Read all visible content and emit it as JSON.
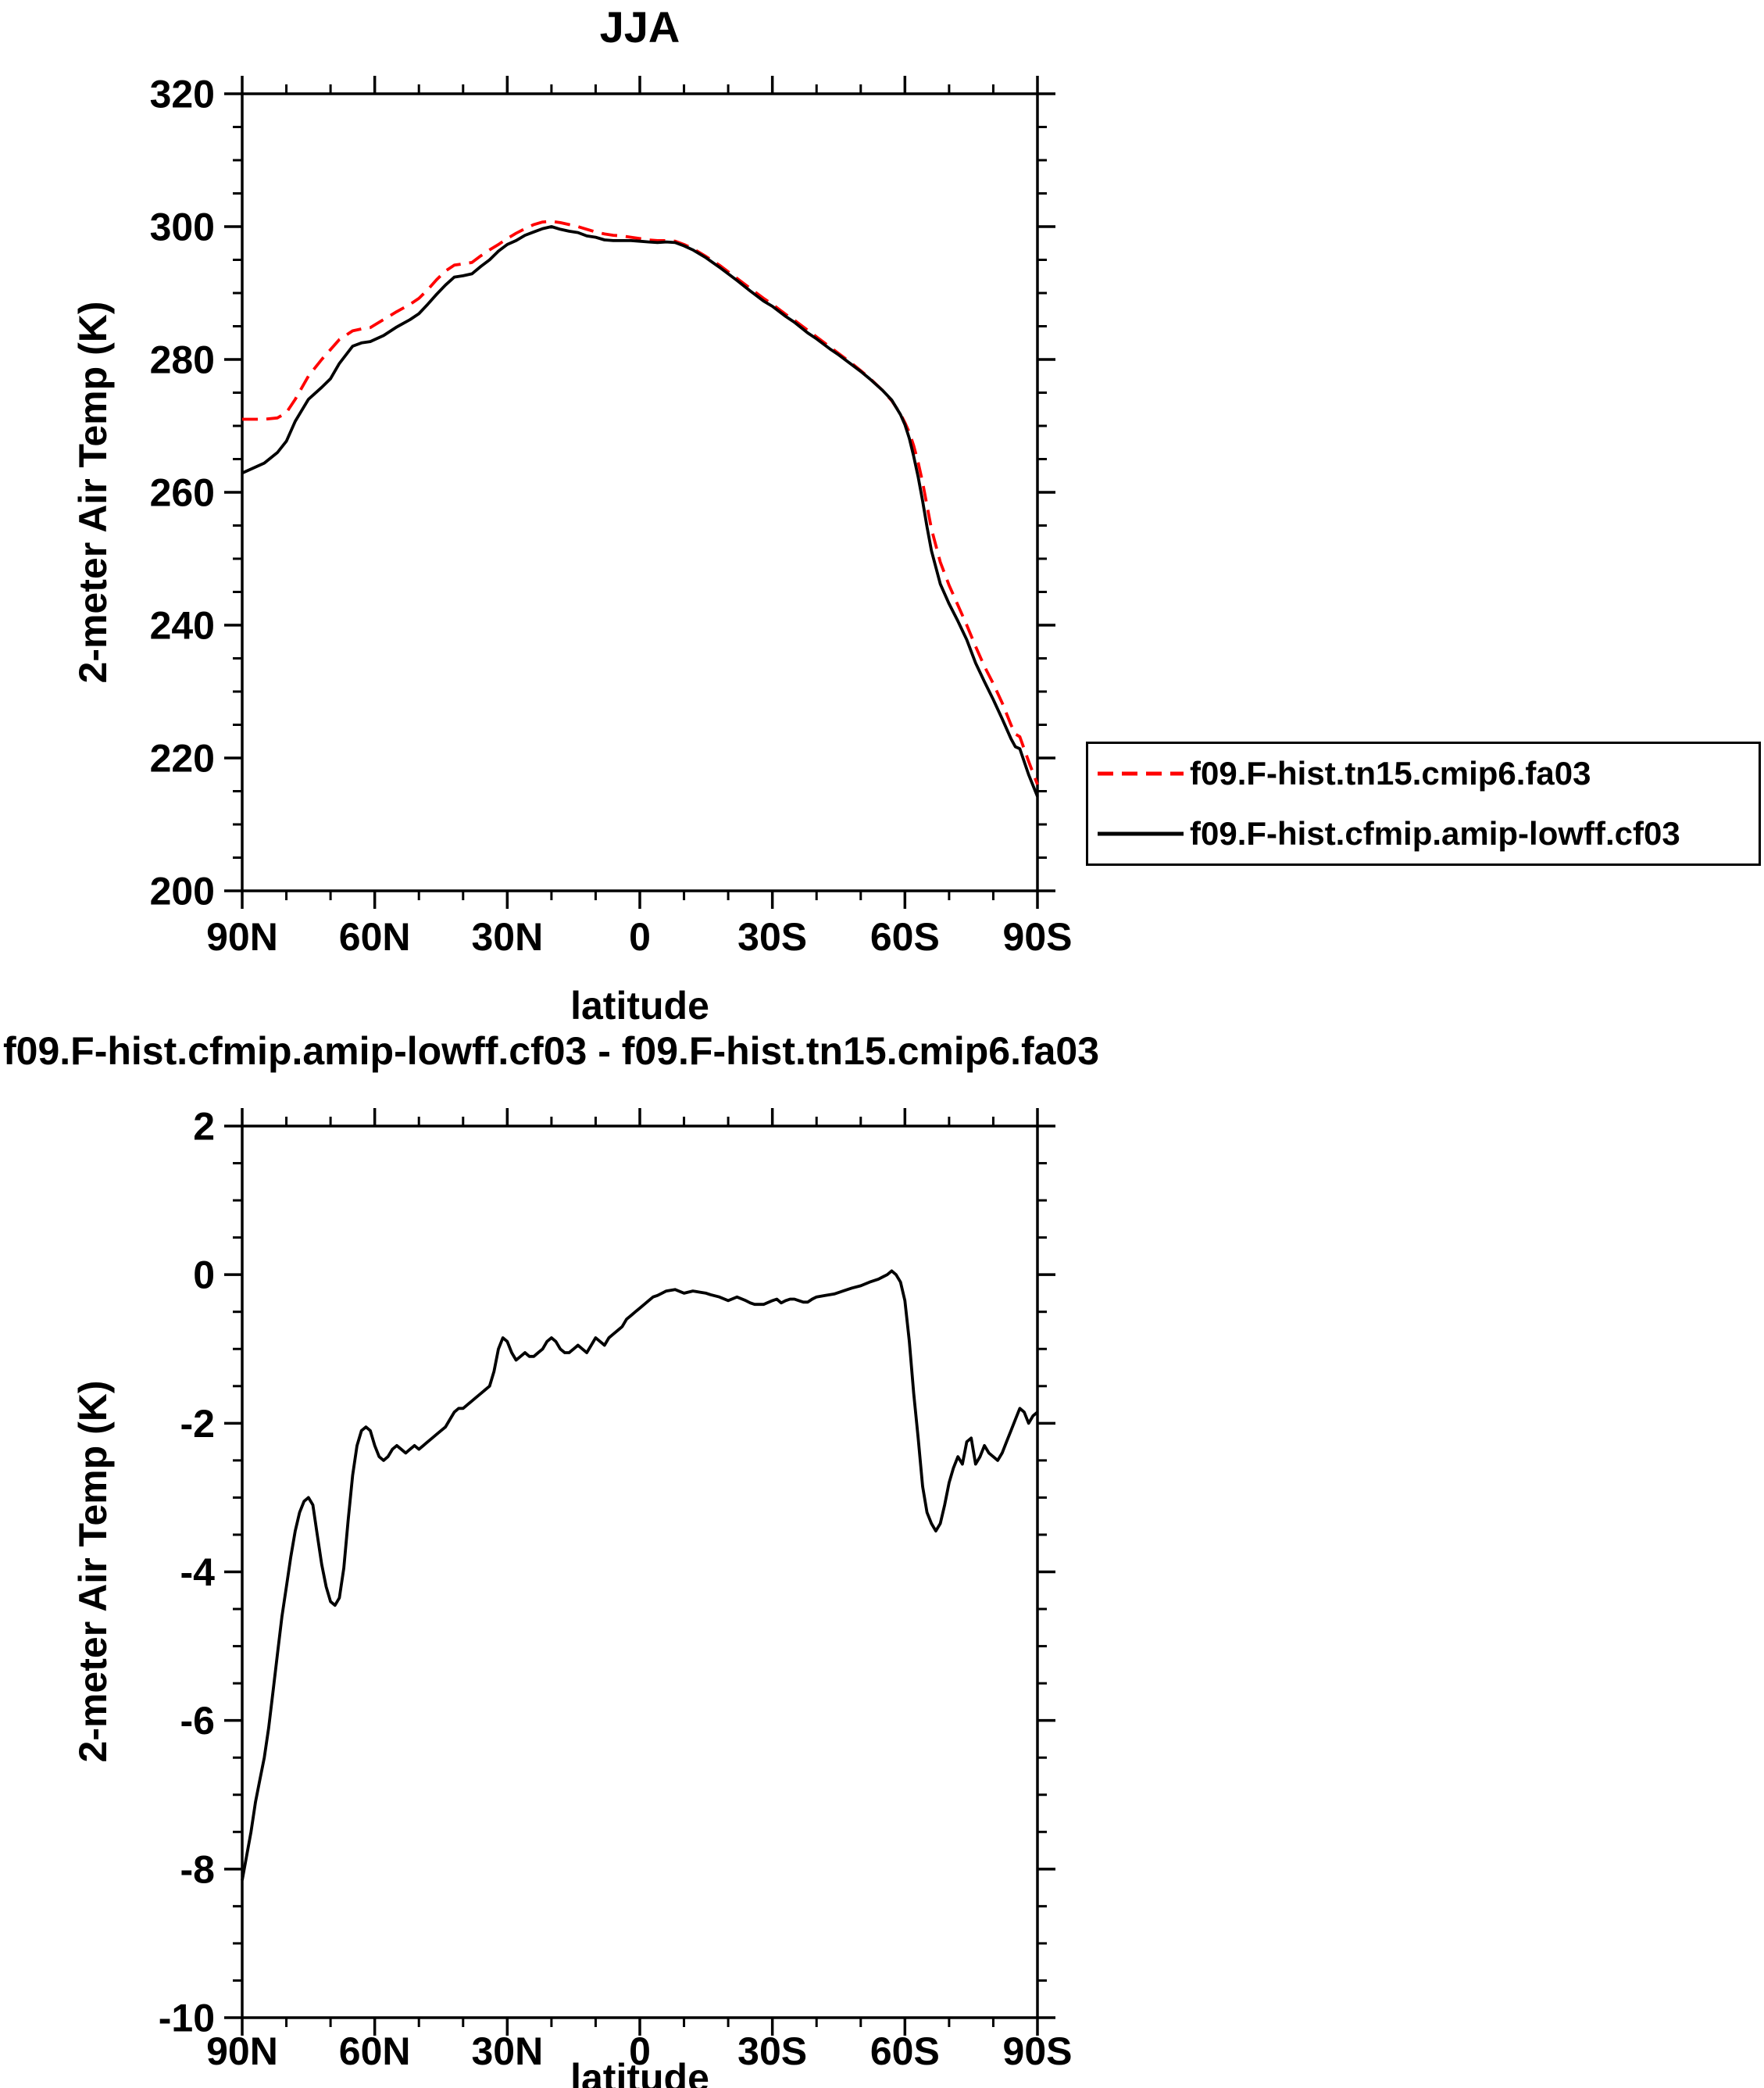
{
  "page": {
    "background": "#ffffff"
  },
  "colors": {
    "series_red": "#ff0000",
    "series_black": "#000000",
    "axis": "#000000"
  },
  "chart_data": [
    {
      "type": "line",
      "title": "JJA",
      "xlabel": "latitude",
      "ylabel": "2-meter Air Temp (K)",
      "xlim": [
        90,
        -90
      ],
      "ylim": [
        200,
        320
      ],
      "grid": false,
      "legend_position": "outside-bottom-right",
      "xticks": {
        "values": [
          90,
          60,
          30,
          0,
          -30,
          -60,
          -90
        ],
        "labels": [
          "90N",
          "60N",
          "30N",
          "0",
          "30S",
          "60S",
          "90S"
        ],
        "minor_step": 10
      },
      "yticks": {
        "values": [
          200,
          220,
          240,
          260,
          280,
          300,
          320
        ],
        "labels": [
          "200",
          "220",
          "240",
          "260",
          "280",
          "300",
          "320"
        ],
        "minor_step": 5
      },
      "x": [
        90,
        85,
        82,
        80,
        78,
        75,
        72,
        70,
        68,
        65,
        63,
        61,
        60,
        58,
        55,
        52,
        50,
        48,
        46,
        44,
        42,
        40,
        38,
        36,
        34,
        32,
        30,
        28,
        26,
        24,
        22,
        20,
        18,
        16,
        14,
        12,
        10,
        8,
        6,
        4,
        2,
        0,
        -2,
        -4,
        -6,
        -8,
        -10,
        -12,
        -15,
        -18,
        -20,
        -22,
        -25,
        -28,
        -30,
        -33,
        -35,
        -38,
        -40,
        -43,
        -45,
        -48,
        -50,
        -52,
        -55,
        -57,
        -59,
        -60,
        -61,
        -62,
        -63,
        -64,
        -65,
        -66,
        -68,
        -70,
        -72,
        -74,
        -76,
        -78,
        -80,
        -82,
        -84,
        -85,
        -86,
        -88,
        -90
      ],
      "series": [
        {
          "name": "f09.F-hist.tn15.cmip6.fa03",
          "color": "#ff0000",
          "style": "dashed",
          "y": [
            271.0,
            271.0,
            271.2,
            272.0,
            274.0,
            277.5,
            280.0,
            281.5,
            283.0,
            284.3,
            284.6,
            284.8,
            285.2,
            286.0,
            287.2,
            288.3,
            289.2,
            290.5,
            292.0,
            293.3,
            294.2,
            294.4,
            294.6,
            295.6,
            296.5,
            297.3,
            298.2,
            299.0,
            299.7,
            300.3,
            300.7,
            300.8,
            300.6,
            300.3,
            300.0,
            299.6,
            299.2,
            298.9,
            298.7,
            298.6,
            298.4,
            298.2,
            298.0,
            297.9,
            297.9,
            297.8,
            297.3,
            296.7,
            295.5,
            294.2,
            293.2,
            292.2,
            290.7,
            289.2,
            288.3,
            286.8,
            285.9,
            284.4,
            283.4,
            281.9,
            280.9,
            279.4,
            278.3,
            277.2,
            275.3,
            273.8,
            271.8,
            270.5,
            269.0,
            267.0,
            264.5,
            261.5,
            258.0,
            254.5,
            249.5,
            246.0,
            243.0,
            240.0,
            236.8,
            233.8,
            231.2,
            228.3,
            225.0,
            223.6,
            223.2,
            219.5,
            216.0
          ]
        },
        {
          "name": "f09.F-hist.cfmip.amip-lowff.cf03",
          "color": "#000000",
          "style": "solid",
          "y": [
            262.9,
            264.4,
            266.0,
            267.7,
            270.7,
            274.0,
            275.8,
            277.1,
            279.4,
            282.0,
            282.5,
            282.7,
            283.0,
            283.6,
            284.9,
            286.0,
            286.9,
            288.3,
            289.8,
            291.2,
            292.4,
            292.6,
            292.9,
            294.0,
            295.0,
            296.3,
            297.3,
            297.9,
            298.7,
            299.2,
            299.7,
            300.0,
            299.6,
            299.3,
            299.1,
            298.6,
            298.4,
            298.0,
            297.9,
            297.9,
            297.9,
            297.8,
            297.7,
            297.6,
            297.7,
            297.6,
            297.1,
            296.5,
            295.3,
            293.9,
            292.9,
            291.9,
            290.3,
            288.8,
            288.0,
            286.5,
            285.6,
            284.0,
            283.1,
            281.6,
            280.7,
            279.2,
            278.2,
            277.1,
            275.3,
            273.9,
            271.7,
            270.2,
            268.1,
            265.4,
            262.3,
            258.7,
            254.8,
            251.2,
            246.2,
            243.2,
            240.6,
            237.8,
            234.3,
            231.5,
            228.8,
            225.9,
            222.9,
            221.7,
            221.4,
            217.5,
            214.2
          ]
        }
      ]
    },
    {
      "type": "line",
      "title": "f09.F-hist.cfmip.amip-lowff.cf03 - f09.F-hist.tn15.cmip6.fa03",
      "xlabel": "latitude",
      "ylabel": "2-meter Air Temp (K)",
      "xlim": [
        90,
        -90
      ],
      "ylim": [
        -10,
        2
      ],
      "grid": false,
      "xticks": {
        "values": [
          90,
          60,
          30,
          0,
          -30,
          -60,
          -90
        ],
        "labels": [
          "90N",
          "60N",
          "30N",
          "0",
          "30S",
          "60S",
          "90S"
        ],
        "minor_step": 10
      },
      "yticks": {
        "values": [
          -10,
          -8,
          -6,
          -4,
          -2,
          0,
          2
        ],
        "labels": [
          "-10",
          "-8",
          "-6",
          "-4",
          "-2",
          "0",
          "2"
        ],
        "minor_step": 0.5
      },
      "series": [
        {
          "color": "#000000",
          "style": "solid",
          "x": [
            90,
            88,
            87,
            86,
            85,
            84,
            83,
            82,
            81,
            80,
            79,
            78,
            77,
            76,
            75,
            74,
            73,
            72,
            71,
            70,
            69,
            68,
            67,
            66,
            65,
            64,
            63,
            62,
            61,
            60,
            59,
            58,
            57,
            56,
            55,
            54,
            53,
            52,
            51,
            50,
            49,
            48,
            47,
            46,
            45,
            44,
            43,
            42,
            41,
            40,
            39,
            38,
            37,
            36,
            35,
            34,
            33,
            32,
            31,
            30,
            29,
            28,
            27,
            26,
            25,
            24,
            23,
            22,
            21,
            20,
            19,
            18,
            17,
            16,
            15,
            14,
            13,
            12,
            11,
            10,
            9,
            8,
            7,
            6,
            5,
            4,
            3,
            2,
            1,
            0,
            -1,
            -2,
            -3,
            -4,
            -5,
            -6,
            -8,
            -10,
            -12,
            -14,
            -15,
            -16,
            -18,
            -20,
            -22,
            -24,
            -25,
            -26,
            -28,
            -30,
            -31,
            -32,
            -33,
            -34,
            -35,
            -36,
            -37,
            -38,
            -39,
            -40,
            -42,
            -44,
            -46,
            -48,
            -50,
            -52,
            -54,
            -55,
            -56,
            -57,
            -58,
            -59,
            -60,
            -61,
            -62,
            -63,
            -64,
            -65,
            -66,
            -67,
            -68,
            -69,
            -70,
            -71,
            -72,
            -73,
            -74,
            -75,
            -76,
            -77,
            -78,
            -79,
            -80,
            -81,
            -82,
            -83,
            -84,
            -85,
            -86,
            -87,
            -88,
            -89,
            -90
          ],
          "y": [
            -8.15,
            -7.5,
            -7.1,
            -6.8,
            -6.5,
            -6.1,
            -5.6,
            -5.1,
            -4.6,
            -4.2,
            -3.8,
            -3.45,
            -3.2,
            -3.05,
            -3.0,
            -3.1,
            -3.5,
            -3.9,
            -4.2,
            -4.4,
            -4.45,
            -4.35,
            -3.95,
            -3.3,
            -2.7,
            -2.3,
            -2.1,
            -2.05,
            -2.1,
            -2.3,
            -2.45,
            -2.5,
            -2.45,
            -2.35,
            -2.3,
            -2.35,
            -2.4,
            -2.35,
            -2.3,
            -2.35,
            -2.3,
            -2.25,
            -2.2,
            -2.15,
            -2.1,
            -2.05,
            -1.95,
            -1.85,
            -1.8,
            -1.8,
            -1.75,
            -1.7,
            -1.65,
            -1.6,
            -1.55,
            -1.5,
            -1.3,
            -1.0,
            -0.85,
            -0.9,
            -1.05,
            -1.15,
            -1.1,
            -1.05,
            -1.1,
            -1.1,
            -1.05,
            -1.0,
            -0.9,
            -0.85,
            -0.9,
            -1.0,
            -1.05,
            -1.05,
            -1.0,
            -0.95,
            -1.0,
            -1.05,
            -0.95,
            -0.85,
            -0.9,
            -0.95,
            -0.85,
            -0.8,
            -0.75,
            -0.7,
            -0.6,
            -0.55,
            -0.5,
            -0.45,
            -0.4,
            -0.35,
            -0.3,
            -0.28,
            -0.25,
            -0.22,
            -0.2,
            -0.25,
            -0.22,
            -0.24,
            -0.25,
            -0.27,
            -0.3,
            -0.35,
            -0.3,
            -0.35,
            -0.38,
            -0.4,
            -0.4,
            -0.35,
            -0.33,
            -0.38,
            -0.35,
            -0.33,
            -0.33,
            -0.35,
            -0.37,
            -0.37,
            -0.33,
            -0.3,
            -0.28,
            -0.26,
            -0.22,
            -0.18,
            -0.15,
            -0.1,
            -0.06,
            -0.03,
            0.0,
            0.05,
            0.0,
            -0.1,
            -0.35,
            -0.9,
            -1.6,
            -2.2,
            -2.85,
            -3.2,
            -3.35,
            -3.45,
            -3.35,
            -3.1,
            -2.8,
            -2.6,
            -2.45,
            -2.55,
            -2.25,
            -2.2,
            -2.55,
            -2.45,
            -2.3,
            -2.4,
            -2.45,
            -2.5,
            -2.4,
            -2.25,
            -2.1,
            -1.95,
            -1.8,
            -1.85,
            -2.0,
            -1.9,
            -1.85
          ]
        }
      ]
    }
  ]
}
